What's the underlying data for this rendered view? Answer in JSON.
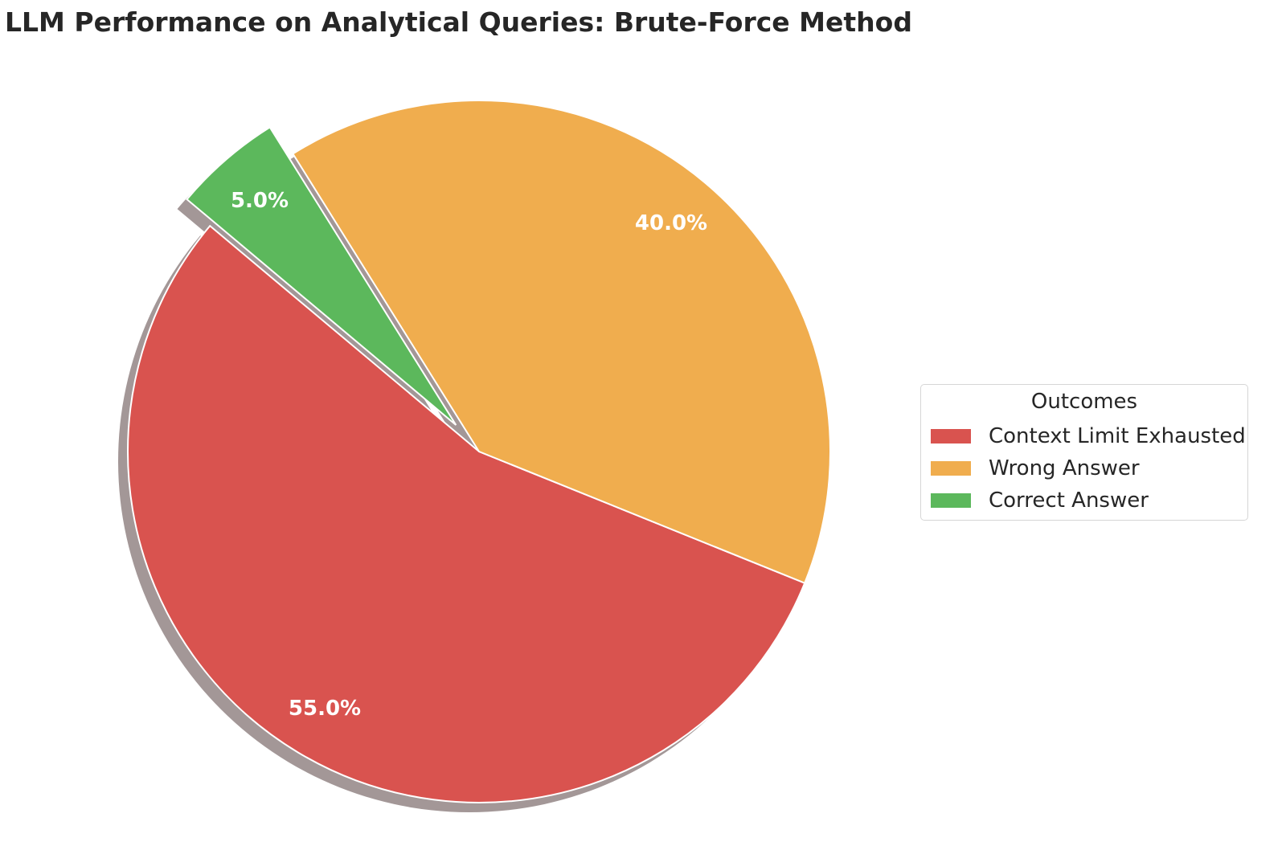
{
  "title": "LLM Performance on Analytical Queries: Brute-Force Method",
  "legend": {
    "title": "Outcomes",
    "items": [
      {
        "label": "Context Limit Exhausted",
        "color": "#d9534f"
      },
      {
        "label": "Wrong Answer",
        "color": "#f0ad4e"
      },
      {
        "label": "Correct Answer",
        "color": "#5cb85c"
      }
    ]
  },
  "labels": {
    "red": "55.0%",
    "orange": "40.0%",
    "green": "5.0%"
  },
  "chart_data": {
    "type": "pie",
    "title": "LLM Performance on Analytical Queries: Brute-Force Method",
    "categories": [
      "Context Limit Exhausted",
      "Wrong Answer",
      "Correct Answer"
    ],
    "values": [
      55.0,
      40.0,
      5.0
    ],
    "colors": [
      "#d9534f",
      "#f0ad4e",
      "#5cb85c"
    ],
    "explode": [
      0,
      0,
      0.1
    ],
    "startangle": 140,
    "shadow": true,
    "autopct": "%1.1f%%",
    "legend_title": "Outcomes",
    "legend_position": "center left, outside right"
  }
}
